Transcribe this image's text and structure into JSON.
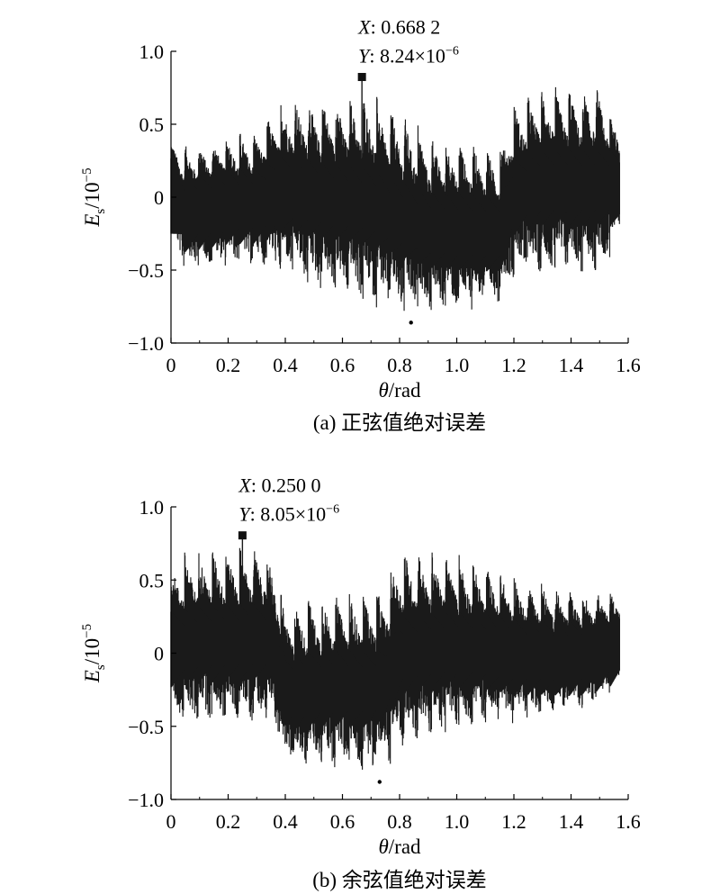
{
  "chart_data": [
    {
      "type": "line",
      "panel": "a",
      "caption": "(a) 正弦值绝对误差",
      "xlabel": "θ/rad",
      "ylabel": "E_s/10^-5",
      "xlim": [
        0,
        1.6
      ],
      "ylim": [
        -1.0,
        1.0
      ],
      "xticks": [
        "0",
        "0.2",
        "0.4",
        "0.6",
        "0.8",
        "1.0",
        "1.2",
        "1.4",
        "1.6"
      ],
      "yticks": [
        "−1.0",
        "−0.5",
        "0",
        "0.5",
        "1.0"
      ],
      "grid": false,
      "annotation": {
        "x": 0.6682,
        "y": 0.824,
        "x_text": "0.668 2",
        "y_text": "8.24×10",
        "y_exp": "−6"
      },
      "min_point": {
        "x": 0.84,
        "y": -0.86
      },
      "envelope": {
        "x": [
          0,
          0.05,
          0.1,
          0.2,
          0.3,
          0.4,
          0.5,
          0.6,
          0.7,
          0.8,
          0.9,
          1.0,
          1.1,
          1.15,
          1.2,
          1.3,
          1.4,
          1.5,
          1.57
        ],
        "upper": [
          0.4,
          0.38,
          0.4,
          0.45,
          0.48,
          0.7,
          0.72,
          0.72,
          0.72,
          0.62,
          0.45,
          0.42,
          0.38,
          0.35,
          0.65,
          0.78,
          0.78,
          0.78,
          0.52
        ],
        "lower": [
          -0.28,
          -0.52,
          -0.5,
          -0.48,
          -0.5,
          -0.55,
          -0.65,
          -0.7,
          -0.75,
          -0.82,
          -0.8,
          -0.8,
          -0.78,
          -0.75,
          -0.55,
          -0.55,
          -0.55,
          -0.55,
          -0.3
        ],
        "period": 0.048
      }
    },
    {
      "type": "line",
      "panel": "b",
      "caption": "(b) 余弦值绝对误差",
      "xlabel": "θ/rad",
      "ylabel": "E_s/10^-5",
      "xlim": [
        0,
        1.6
      ],
      "ylim": [
        -1.0,
        1.0
      ],
      "xticks": [
        "0",
        "0.2",
        "0.4",
        "0.6",
        "0.8",
        "1.0",
        "1.2",
        "1.4",
        "1.6"
      ],
      "yticks": [
        "−1.0",
        "−0.5",
        "0",
        "0.5",
        "1.0"
      ],
      "grid": false,
      "annotation": {
        "x": 0.25,
        "y": 0.805,
        "x_text": "0.250 0",
        "y_text": "8.05×10",
        "y_exp": "−6"
      },
      "min_point": {
        "x": 0.73,
        "y": -0.88
      },
      "envelope": {
        "x": [
          0,
          0.05,
          0.1,
          0.2,
          0.3,
          0.35,
          0.4,
          0.5,
          0.6,
          0.7,
          0.75,
          0.8,
          0.9,
          1.0,
          1.1,
          1.2,
          1.3,
          1.4,
          1.5,
          1.57
        ],
        "upper": [
          0.6,
          0.7,
          0.72,
          0.75,
          0.75,
          0.7,
          0.35,
          0.4,
          0.42,
          0.45,
          0.48,
          0.75,
          0.72,
          0.7,
          0.62,
          0.55,
          0.5,
          0.45,
          0.45,
          0.42
        ],
        "lower": [
          -0.45,
          -0.52,
          -0.5,
          -0.5,
          -0.5,
          -0.45,
          -0.8,
          -0.8,
          -0.8,
          -0.85,
          -0.8,
          -0.7,
          -0.6,
          -0.55,
          -0.5,
          -0.5,
          -0.45,
          -0.42,
          -0.35,
          -0.2
        ],
        "period": 0.048
      }
    }
  ],
  "style": {
    "ink": "#1a1a1a"
  }
}
